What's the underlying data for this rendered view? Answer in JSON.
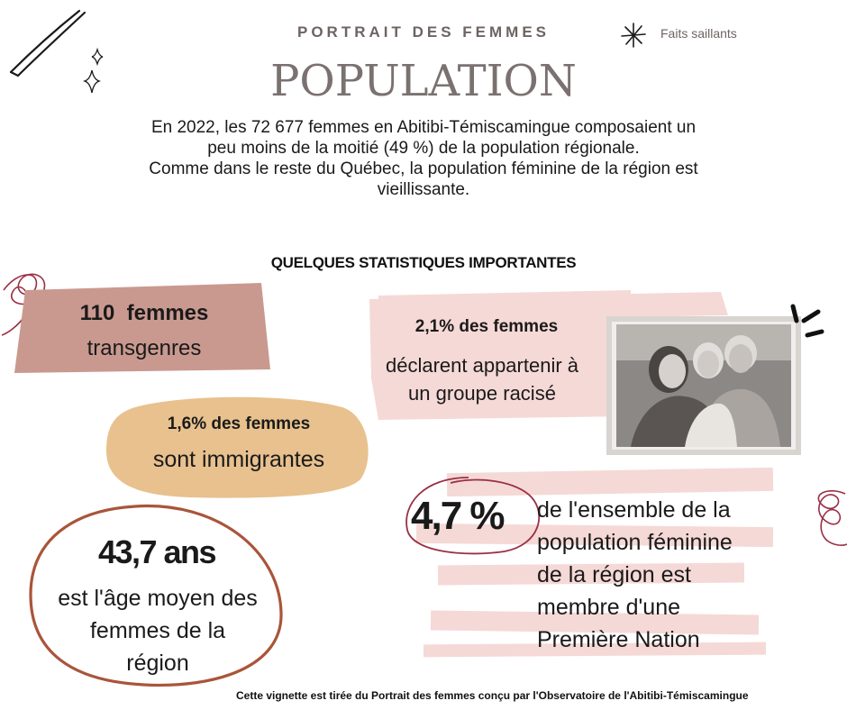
{
  "header": {
    "kicker": "PORTRAIT DES FEMMES",
    "title": "POPULATION",
    "badge": "Faits saillants"
  },
  "intro": {
    "line1": "En 2022, les 72 677 femmes en Abitibi-Témiscamingue composaient un",
    "line2": "peu moins de la moitié (49 %) de la population régionale.",
    "line3": "Comme dans le reste du Québec, la population féminine de la région est",
    "line4": "vieillissante."
  },
  "section_title": "QUELQUES STATISTIQUES IMPORTANTES",
  "stats": {
    "transgender": {
      "value": "110  femmes",
      "label": "transgenres"
    },
    "racialized": {
      "value": "2,1% des femmes",
      "line1": "déclarent appartenir à",
      "line2": "un groupe racisé"
    },
    "immigrant": {
      "value": "1,6% des femmes",
      "label": "sont immigrantes"
    },
    "age": {
      "value": "43,7 ans",
      "line1": "est l'âge moyen des",
      "line2": "femmes de la",
      "line3": "région"
    },
    "first_nation": {
      "value": "4,7 %",
      "line1": "de l'ensemble de la",
      "line2": "population féminine",
      "line3": "de la région est",
      "line4": "membre d'une",
      "line5": "Première Nation"
    }
  },
  "photo": {
    "description_icon": "family-photo-image"
  },
  "footer": "Cette vignette est tirée du Portrait des femmes conçu par l'Observatoire de l'Abitibi-Témiscamingue",
  "colors": {
    "rose_brown": "#c9998f",
    "pale_pink": "#f5d9d6",
    "tan": "#e8c18e",
    "circle_stroke": "#a9553b",
    "accent_wine": "#9b2f45",
    "gray_text": "#6e6362"
  }
}
